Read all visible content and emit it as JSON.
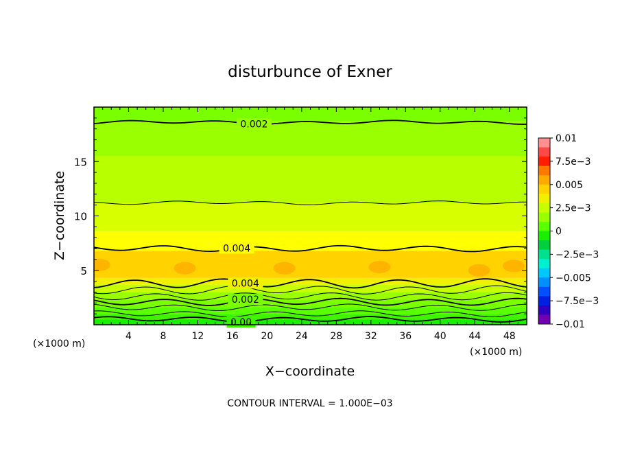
{
  "chart_data": {
    "type": "heatmap",
    "title": "disturbunce of Exner",
    "xlabel": "X−coordinate",
    "ylabel": "Z−coordinate",
    "x_unit": "(×1000 m)",
    "x_unit_right": "(×1000 m)",
    "xlim": [
      0,
      50
    ],
    "ylim": [
      0,
      20
    ],
    "x_ticks": [
      4,
      8,
      12,
      16,
      20,
      24,
      28,
      32,
      36,
      40,
      44,
      48
    ],
    "y_ticks": [
      5,
      10,
      15
    ],
    "footnote": "CONTOUR INTERVAL = 1.000E−03",
    "contour_interval": 0.001,
    "colorbar": {
      "labels": [
        "0.01",
        "7.5e−3",
        "0.005",
        "2.5e−3",
        "0",
        "−2.5e−3",
        "−0.005",
        "−7.5e−3",
        "−0.01"
      ],
      "values": [
        0.01,
        0.0075,
        0.005,
        0.0025,
        0,
        -0.0025,
        -0.005,
        -0.0075,
        -0.01
      ],
      "colors_top_to_bottom": [
        "#ff9090",
        "#ff4848",
        "#ff1e00",
        "#ff7800",
        "#ffaa00",
        "#ffd200",
        "#f0f000",
        "#c8ff00",
        "#9aff00",
        "#5aff00",
        "#18f000",
        "#00d040",
        "#00e090",
        "#00f0d0",
        "#00c8ff",
        "#0090ff",
        "#0050ff",
        "#0020e0",
        "#3000c0",
        "#7000b0"
      ]
    },
    "bands_by_height": [
      {
        "z": [
          0,
          0.5
        ],
        "value": 0.0,
        "color": "#18f000"
      },
      {
        "z": [
          0.5,
          1.0
        ],
        "value": 0.0005,
        "color": "#40f400"
      },
      {
        "z": [
          1.0,
          1.6
        ],
        "value": 0.001,
        "color": "#5aff00"
      },
      {
        "z": [
          1.6,
          2.3
        ],
        "value": 0.0015,
        "color": "#7aff00"
      },
      {
        "z": [
          2.3,
          3.0
        ],
        "value": 0.002,
        "color": "#9aff00"
      },
      {
        "z": [
          3.0,
          3.7
        ],
        "value": 0.003,
        "color": "#c8ff00"
      },
      {
        "z": [
          3.7,
          4.3
        ],
        "value": 0.0035,
        "color": "#f0f000"
      },
      {
        "z": [
          4.3,
          6.8
        ],
        "value": 0.0045,
        "color": "#ffd200"
      },
      {
        "z": [
          6.8,
          8.6
        ],
        "value": 0.0035,
        "color": "#ffff00"
      },
      {
        "z": [
          8.6,
          11.2
        ],
        "value": 0.003,
        "color": "#d8ff00"
      },
      {
        "z": [
          11.2,
          15.5
        ],
        "value": 0.0025,
        "color": "#b8ff00"
      },
      {
        "z": [
          15.5,
          18.7
        ],
        "value": 0.002,
        "color": "#9aff00"
      },
      {
        "z": [
          18.7,
          20
        ],
        "value": 0.0015,
        "color": "#7aff00"
      }
    ],
    "warm_patches": [
      {
        "x": 0.6,
        "z": 5.5
      },
      {
        "x": 10.5,
        "z": 5.2
      },
      {
        "x": 22.0,
        "z": 5.2
      },
      {
        "x": 33.0,
        "z": 5.3
      },
      {
        "x": 44.5,
        "z": 5.0
      },
      {
        "x": 48.5,
        "z": 5.4
      }
    ],
    "contours": [
      {
        "z": 18.6,
        "label": "0.002",
        "label_x": 18.5,
        "bold": true
      },
      {
        "z": 11.2,
        "label": "",
        "label_x": null,
        "bold": false
      },
      {
        "z": 7.0,
        "label": "0.004",
        "label_x": 16.5,
        "bold": true
      },
      {
        "z": 3.8,
        "label": "0.004",
        "label_x": 17.5,
        "bold": true
      },
      {
        "z": 3.2,
        "label": "",
        "label_x": null,
        "bold": false
      },
      {
        "z": 2.6,
        "label": "",
        "label_x": null,
        "bold": false
      },
      {
        "z": 2.1,
        "label": "0.002",
        "label_x": 17.5,
        "bold": true
      },
      {
        "z": 1.6,
        "label": "",
        "label_x": null,
        "bold": false
      },
      {
        "z": 1.0,
        "label": "",
        "label_x": null,
        "bold": false
      },
      {
        "z": 0.5,
        "label": "0.00",
        "label_x": 17.0,
        "bold": true
      }
    ]
  }
}
